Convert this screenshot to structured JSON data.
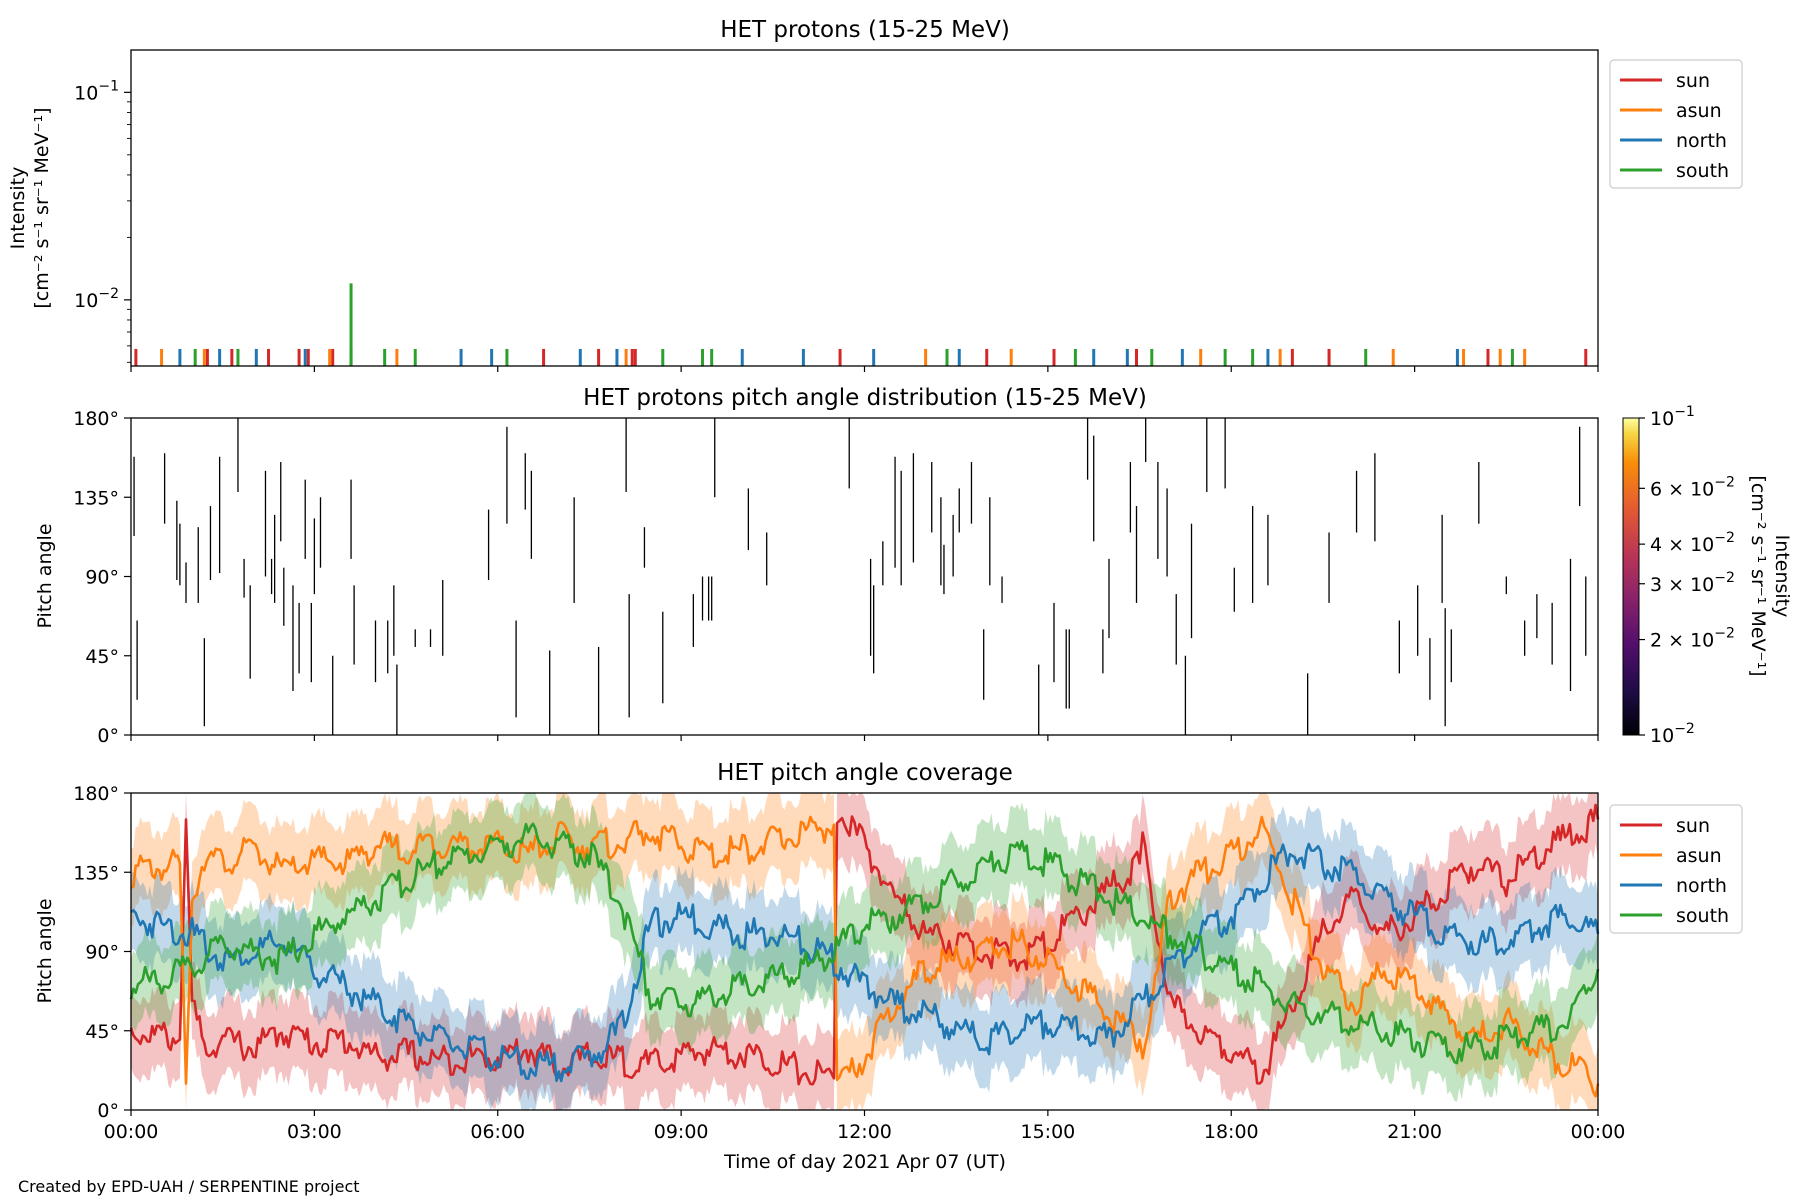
{
  "figure": {
    "xlabel": "Time of day 2021 Apr 07 (UT)",
    "x_ticks": [
      "00:00",
      "03:00",
      "06:00",
      "09:00",
      "12:00",
      "15:00",
      "18:00",
      "21:00",
      "00:00"
    ],
    "credit": "Created by EPD-UAH / SERPENTINE project"
  },
  "colors": {
    "sun": "#d62728",
    "asun": "#ff7f0e",
    "north": "#1f77b4",
    "south": "#2ca02c"
  },
  "chart_data": [
    {
      "type": "bar",
      "title": "HET protons (15-25 MeV)",
      "ylabel_line1": "Intensity",
      "ylabel_line2": "[cm⁻² s⁻¹ sr⁻¹ MeV⁻¹]",
      "yscale": "log",
      "ylim": [
        0.0048,
        0.16
      ],
      "xlim_hours": [
        0,
        24
      ],
      "y_ticks": [
        {
          "base": "10",
          "exp": "−1",
          "value": 0.1
        },
        {
          "base": "10",
          "exp": "−2",
          "value": 0.01
        }
      ],
      "legend_position": "outside-right-top",
      "series": [
        {
          "name": "sun",
          "color": "#d62728",
          "value": 0.0058,
          "x_hours": [
            0.08,
            1.25,
            1.65,
            2.25,
            2.75,
            2.9,
            3.3,
            6.75,
            7.65,
            8.2,
            8.25,
            11.6,
            14.0,
            15.1,
            16.45,
            19.0,
            19.6,
            22.2,
            23.8
          ]
        },
        {
          "name": "asun",
          "color": "#ff7f0e",
          "value": 0.0058,
          "x_hours": [
            0.5,
            1.2,
            3.25,
            4.35,
            8.1,
            13.0,
            14.4,
            17.5,
            18.8,
            20.65,
            21.8,
            22.4,
            22.8
          ]
        },
        {
          "name": "north",
          "color": "#1f77b4",
          "value": 0.0058,
          "x_hours": [
            0.8,
            1.45,
            2.05,
            2.85,
            5.4,
            5.9,
            7.35,
            7.95,
            10.0,
            11.0,
            12.15,
            13.55,
            15.75,
            16.3,
            17.2,
            18.6,
            21.7
          ]
        },
        {
          "name": "south",
          "color": "#2ca02c",
          "value": 0.0058,
          "x_hours": [
            1.05,
            1.75,
            3.6,
            4.15,
            4.65,
            6.15,
            8.7,
            9.35,
            9.5,
            13.35,
            15.45,
            16.7,
            17.9,
            18.35,
            20.2,
            22.6
          ]
        },
        {
          "name": "south",
          "color": "#2ca02c",
          "value": 0.012,
          "x_hours": [
            3.6
          ]
        }
      ]
    },
    {
      "type": "heatmap",
      "title": "HET protons pitch angle distribution (15-25 MeV)",
      "ylabel": "Pitch angle",
      "ylim": [
        0,
        180
      ],
      "y_ticks": [
        "180°",
        "135°",
        "90°",
        "45°",
        "0°"
      ],
      "y_tick_values": [
        180,
        135,
        90,
        45,
        0
      ],
      "colorbar": {
        "label_line1": "Intensity",
        "label_line2": "[cm⁻² s⁻¹ sr⁻¹ MeV⁻¹]",
        "scale": "log",
        "range": [
          0.01,
          0.1
        ],
        "colormap": "inferno",
        "ticks": [
          {
            "mant": "",
            "base": "10",
            "exp": "−1",
            "value": 0.1
          },
          {
            "mant": "6 × ",
            "base": "10",
            "exp": "−2",
            "value": 0.06
          },
          {
            "mant": "4 × ",
            "base": "10",
            "exp": "−2",
            "value": 0.04
          },
          {
            "mant": "3 × ",
            "base": "10",
            "exp": "−2",
            "value": 0.03
          },
          {
            "mant": "2 × ",
            "base": "10",
            "exp": "−2",
            "value": 0.02
          },
          {
            "mant": "",
            "base": "10",
            "exp": "−2",
            "value": 0.01
          }
        ]
      },
      "segments_hours_deg": [
        [
          0.05,
          158,
          113
        ],
        [
          0.1,
          65,
          20
        ],
        [
          0.55,
          160,
          120
        ],
        [
          0.75,
          133,
          88
        ],
        [
          0.8,
          120,
          85
        ],
        [
          0.9,
          98,
          75
        ],
        [
          1.1,
          118,
          75
        ],
        [
          1.2,
          55,
          5
        ],
        [
          1.3,
          130,
          88
        ],
        [
          1.45,
          158,
          92
        ],
        [
          1.75,
          180,
          138
        ],
        [
          1.85,
          100,
          78
        ],
        [
          1.95,
          85,
          32
        ],
        [
          2.2,
          150,
          90
        ],
        [
          2.3,
          100,
          80
        ],
        [
          2.35,
          125,
          75
        ],
        [
          2.45,
          155,
          110
        ],
        [
          2.5,
          95,
          62
        ],
        [
          2.65,
          85,
          25
        ],
        [
          2.75,
          75,
          35
        ],
        [
          2.85,
          145,
          100
        ],
        [
          2.95,
          75,
          30
        ],
        [
          3.0,
          123,
          80
        ],
        [
          3.1,
          135,
          95
        ],
        [
          3.3,
          45,
          0
        ],
        [
          3.6,
          145,
          100
        ],
        [
          3.65,
          85,
          40
        ],
        [
          4.0,
          65,
          30
        ],
        [
          4.2,
          65,
          35
        ],
        [
          4.3,
          85,
          45
        ],
        [
          4.35,
          40,
          0
        ],
        [
          4.65,
          60,
          50
        ],
        [
          4.9,
          60,
          50
        ],
        [
          5.1,
          88,
          45
        ],
        [
          5.85,
          128,
          88
        ],
        [
          6.15,
          175,
          120
        ],
        [
          6.3,
          65,
          10
        ],
        [
          6.45,
          160,
          128
        ],
        [
          6.55,
          150,
          100
        ],
        [
          6.85,
          48,
          0
        ],
        [
          7.25,
          135,
          75
        ],
        [
          7.65,
          50,
          0
        ],
        [
          8.1,
          180,
          138
        ],
        [
          8.15,
          80,
          10
        ],
        [
          8.4,
          118,
          95
        ],
        [
          8.7,
          70,
          18
        ],
        [
          9.2,
          80,
          50
        ],
        [
          9.35,
          90,
          65
        ],
        [
          9.45,
          90,
          65
        ],
        [
          9.5,
          90,
          65
        ],
        [
          9.55,
          180,
          135
        ],
        [
          10.1,
          140,
          105
        ],
        [
          10.4,
          115,
          85
        ],
        [
          11.75,
          180,
          140
        ],
        [
          12.1,
          100,
          45
        ],
        [
          12.15,
          85,
          35
        ],
        [
          12.3,
          110,
          85
        ],
        [
          12.5,
          158,
          95
        ],
        [
          12.6,
          150,
          85
        ],
        [
          12.8,
          160,
          98
        ],
        [
          13.1,
          155,
          115
        ],
        [
          13.25,
          135,
          85
        ],
        [
          13.3,
          108,
          80
        ],
        [
          13.45,
          125,
          90
        ],
        [
          13.55,
          140,
          115
        ],
        [
          13.75,
          155,
          120
        ],
        [
          13.95,
          60,
          20
        ],
        [
          14.05,
          135,
          85
        ],
        [
          14.25,
          90,
          75
        ],
        [
          14.85,
          40,
          0
        ],
        [
          15.1,
          75,
          30
        ],
        [
          15.3,
          60,
          15
        ],
        [
          15.35,
          60,
          15
        ],
        [
          15.65,
          180,
          145
        ],
        [
          15.75,
          170,
          110
        ],
        [
          15.9,
          60,
          35
        ],
        [
          16.0,
          100,
          55
        ],
        [
          16.35,
          155,
          115
        ],
        [
          16.45,
          130,
          75
        ],
        [
          16.6,
          180,
          155
        ],
        [
          16.8,
          155,
          100
        ],
        [
          16.95,
          140,
          90
        ],
        [
          17.1,
          80,
          40
        ],
        [
          17.25,
          45,
          0
        ],
        [
          17.35,
          120,
          55
        ],
        [
          17.6,
          180,
          138
        ],
        [
          17.9,
          180,
          140
        ],
        [
          18.05,
          95,
          70
        ],
        [
          18.35,
          130,
          75
        ],
        [
          18.6,
          125,
          85
        ],
        [
          19.25,
          35,
          0
        ],
        [
          19.6,
          115,
          75
        ],
        [
          20.05,
          150,
          115
        ],
        [
          20.35,
          160,
          110
        ],
        [
          20.75,
          65,
          35
        ],
        [
          21.05,
          85,
          45
        ],
        [
          21.25,
          55,
          20
        ],
        [
          21.45,
          125,
          75
        ],
        [
          21.5,
          72,
          5
        ],
        [
          21.6,
          60,
          30
        ],
        [
          22.05,
          155,
          120
        ],
        [
          22.5,
          80,
          90
        ],
        [
          22.8,
          65,
          45
        ],
        [
          23.0,
          80,
          55
        ],
        [
          23.25,
          75,
          40
        ],
        [
          23.55,
          100,
          25
        ],
        [
          23.7,
          175,
          130
        ],
        [
          23.8,
          90,
          45
        ]
      ]
    },
    {
      "type": "line",
      "title": "HET pitch angle coverage",
      "ylabel": "Pitch angle",
      "ylim": [
        0,
        180
      ],
      "xlim_hours": [
        0,
        24
      ],
      "y_ticks": [
        "180°",
        "135°",
        "90°",
        "45°",
        "0°"
      ],
      "y_tick_values": [
        180,
        135,
        90,
        45,
        0
      ],
      "legend_position": "outside-right-top",
      "series": [
        {
          "name": "sun",
          "color": "#d62728",
          "x_hours": [
            0,
            0.5,
            0.8,
            0.9,
            1.0,
            1.2,
            1.5,
            2.0,
            2.5,
            3.0,
            3.5,
            4.0,
            4.5,
            5.0,
            5.5,
            6.0,
            6.5,
            7.0,
            7.5,
            8.0,
            8.5,
            9.0,
            9.5,
            10.0,
            10.5,
            11.0,
            11.5,
            11.55,
            12.0,
            12.5,
            13.0,
            13.5,
            14.0,
            14.5,
            15.0,
            15.5,
            16.0,
            16.5,
            16.55,
            17.0,
            17.5,
            18.0,
            18.5,
            19.0,
            19.5,
            20.0,
            20.5,
            21.0,
            21.5,
            22.0,
            22.5,
            23.0,
            23.5,
            24.0
          ],
          "values": [
            45,
            42,
            40,
            165,
            60,
            35,
            40,
            35,
            45,
            38,
            40,
            30,
            32,
            28,
            30,
            30,
            35,
            25,
            30,
            28,
            25,
            30,
            35,
            32,
            28,
            22,
            18,
            170,
            150,
            120,
            100,
            95,
            90,
            85,
            95,
            110,
            125,
            140,
            150,
            60,
            45,
            35,
            20,
            60,
            100,
            120,
            100,
            110,
            125,
            140,
            130,
            145,
            155,
            165
          ]
        },
        {
          "name": "asun",
          "color": "#ff7f0e",
          "x_hours": [
            0,
            0.5,
            0.8,
            0.9,
            1.0,
            1.2,
            1.5,
            2.0,
            2.5,
            3.0,
            3.5,
            4.0,
            4.5,
            5.0,
            5.5,
            6.0,
            6.5,
            7.0,
            7.5,
            8.0,
            8.5,
            9.0,
            9.5,
            10.0,
            10.5,
            11.0,
            11.5,
            11.55,
            12.0,
            12.5,
            13.0,
            13.5,
            14.0,
            14.5,
            15.0,
            15.5,
            16.0,
            16.5,
            16.55,
            17.0,
            17.5,
            18.0,
            18.5,
            19.0,
            19.5,
            20.0,
            20.5,
            21.0,
            21.5,
            22.0,
            22.5,
            23.0,
            23.5,
            24.0
          ],
          "values": [
            135,
            138,
            140,
            15,
            120,
            145,
            140,
            148,
            135,
            142,
            140,
            150,
            148,
            152,
            150,
            150,
            145,
            155,
            150,
            152,
            158,
            150,
            145,
            148,
            152,
            158,
            162,
            10,
            30,
            60,
            80,
            85,
            90,
            95,
            85,
            70,
            55,
            40,
            30,
            120,
            135,
            145,
            160,
            120,
            80,
            60,
            80,
            70,
            55,
            40,
            50,
            35,
            25,
            15
          ]
        },
        {
          "name": "north",
          "color": "#1f77b4",
          "x_hours": [
            0,
            0.5,
            1.0,
            1.5,
            2.0,
            2.5,
            3.0,
            3.5,
            4.0,
            4.5,
            5.0,
            5.5,
            6.0,
            6.5,
            7.0,
            7.5,
            8.0,
            8.5,
            9.0,
            9.5,
            10.0,
            10.5,
            11.0,
            11.5,
            12.0,
            12.5,
            13.0,
            13.5,
            14.0,
            14.5,
            15.0,
            15.5,
            16.0,
            16.5,
            17.0,
            17.5,
            18.0,
            18.5,
            19.0,
            19.5,
            20.0,
            20.5,
            21.0,
            21.5,
            22.0,
            22.5,
            23.0,
            23.5,
            24.0
          ],
          "values": [
            110,
            105,
            100,
            85,
            90,
            95,
            80,
            70,
            60,
            50,
            40,
            35,
            30,
            25,
            25,
            30,
            45,
            105,
            110,
            105,
            100,
            100,
            95,
            85,
            70,
            60,
            55,
            45,
            40,
            45,
            50,
            45,
            40,
            60,
            80,
            100,
            110,
            130,
            150,
            140,
            135,
            120,
            110,
            100,
            95,
            95,
            105,
            110,
            100
          ]
        },
        {
          "name": "south",
          "color": "#2ca02c",
          "x_hours": [
            0,
            0.5,
            1.0,
            1.5,
            2.0,
            2.5,
            3.0,
            3.5,
            4.0,
            4.5,
            5.0,
            5.5,
            6.0,
            6.5,
            7.0,
            7.5,
            8.0,
            8.5,
            9.0,
            9.5,
            10.0,
            10.5,
            11.0,
            11.5,
            12.0,
            12.5,
            13.0,
            13.5,
            14.0,
            14.5,
            15.0,
            15.5,
            16.0,
            16.5,
            17.0,
            17.5,
            18.0,
            18.5,
            19.0,
            19.5,
            20.0,
            20.5,
            21.0,
            21.5,
            22.0,
            22.5,
            23.0,
            23.5,
            24.0
          ],
          "values": [
            70,
            75,
            80,
            95,
            90,
            85,
            100,
            110,
            120,
            130,
            140,
            145,
            150,
            155,
            150,
            145,
            120,
            65,
            60,
            65,
            70,
            75,
            80,
            90,
            105,
            110,
            120,
            130,
            140,
            145,
            140,
            130,
            120,
            110,
            100,
            90,
            80,
            70,
            60,
            55,
            50,
            45,
            40,
            35,
            35,
            40,
            45,
            50,
            80
          ]
        }
      ]
    }
  ]
}
